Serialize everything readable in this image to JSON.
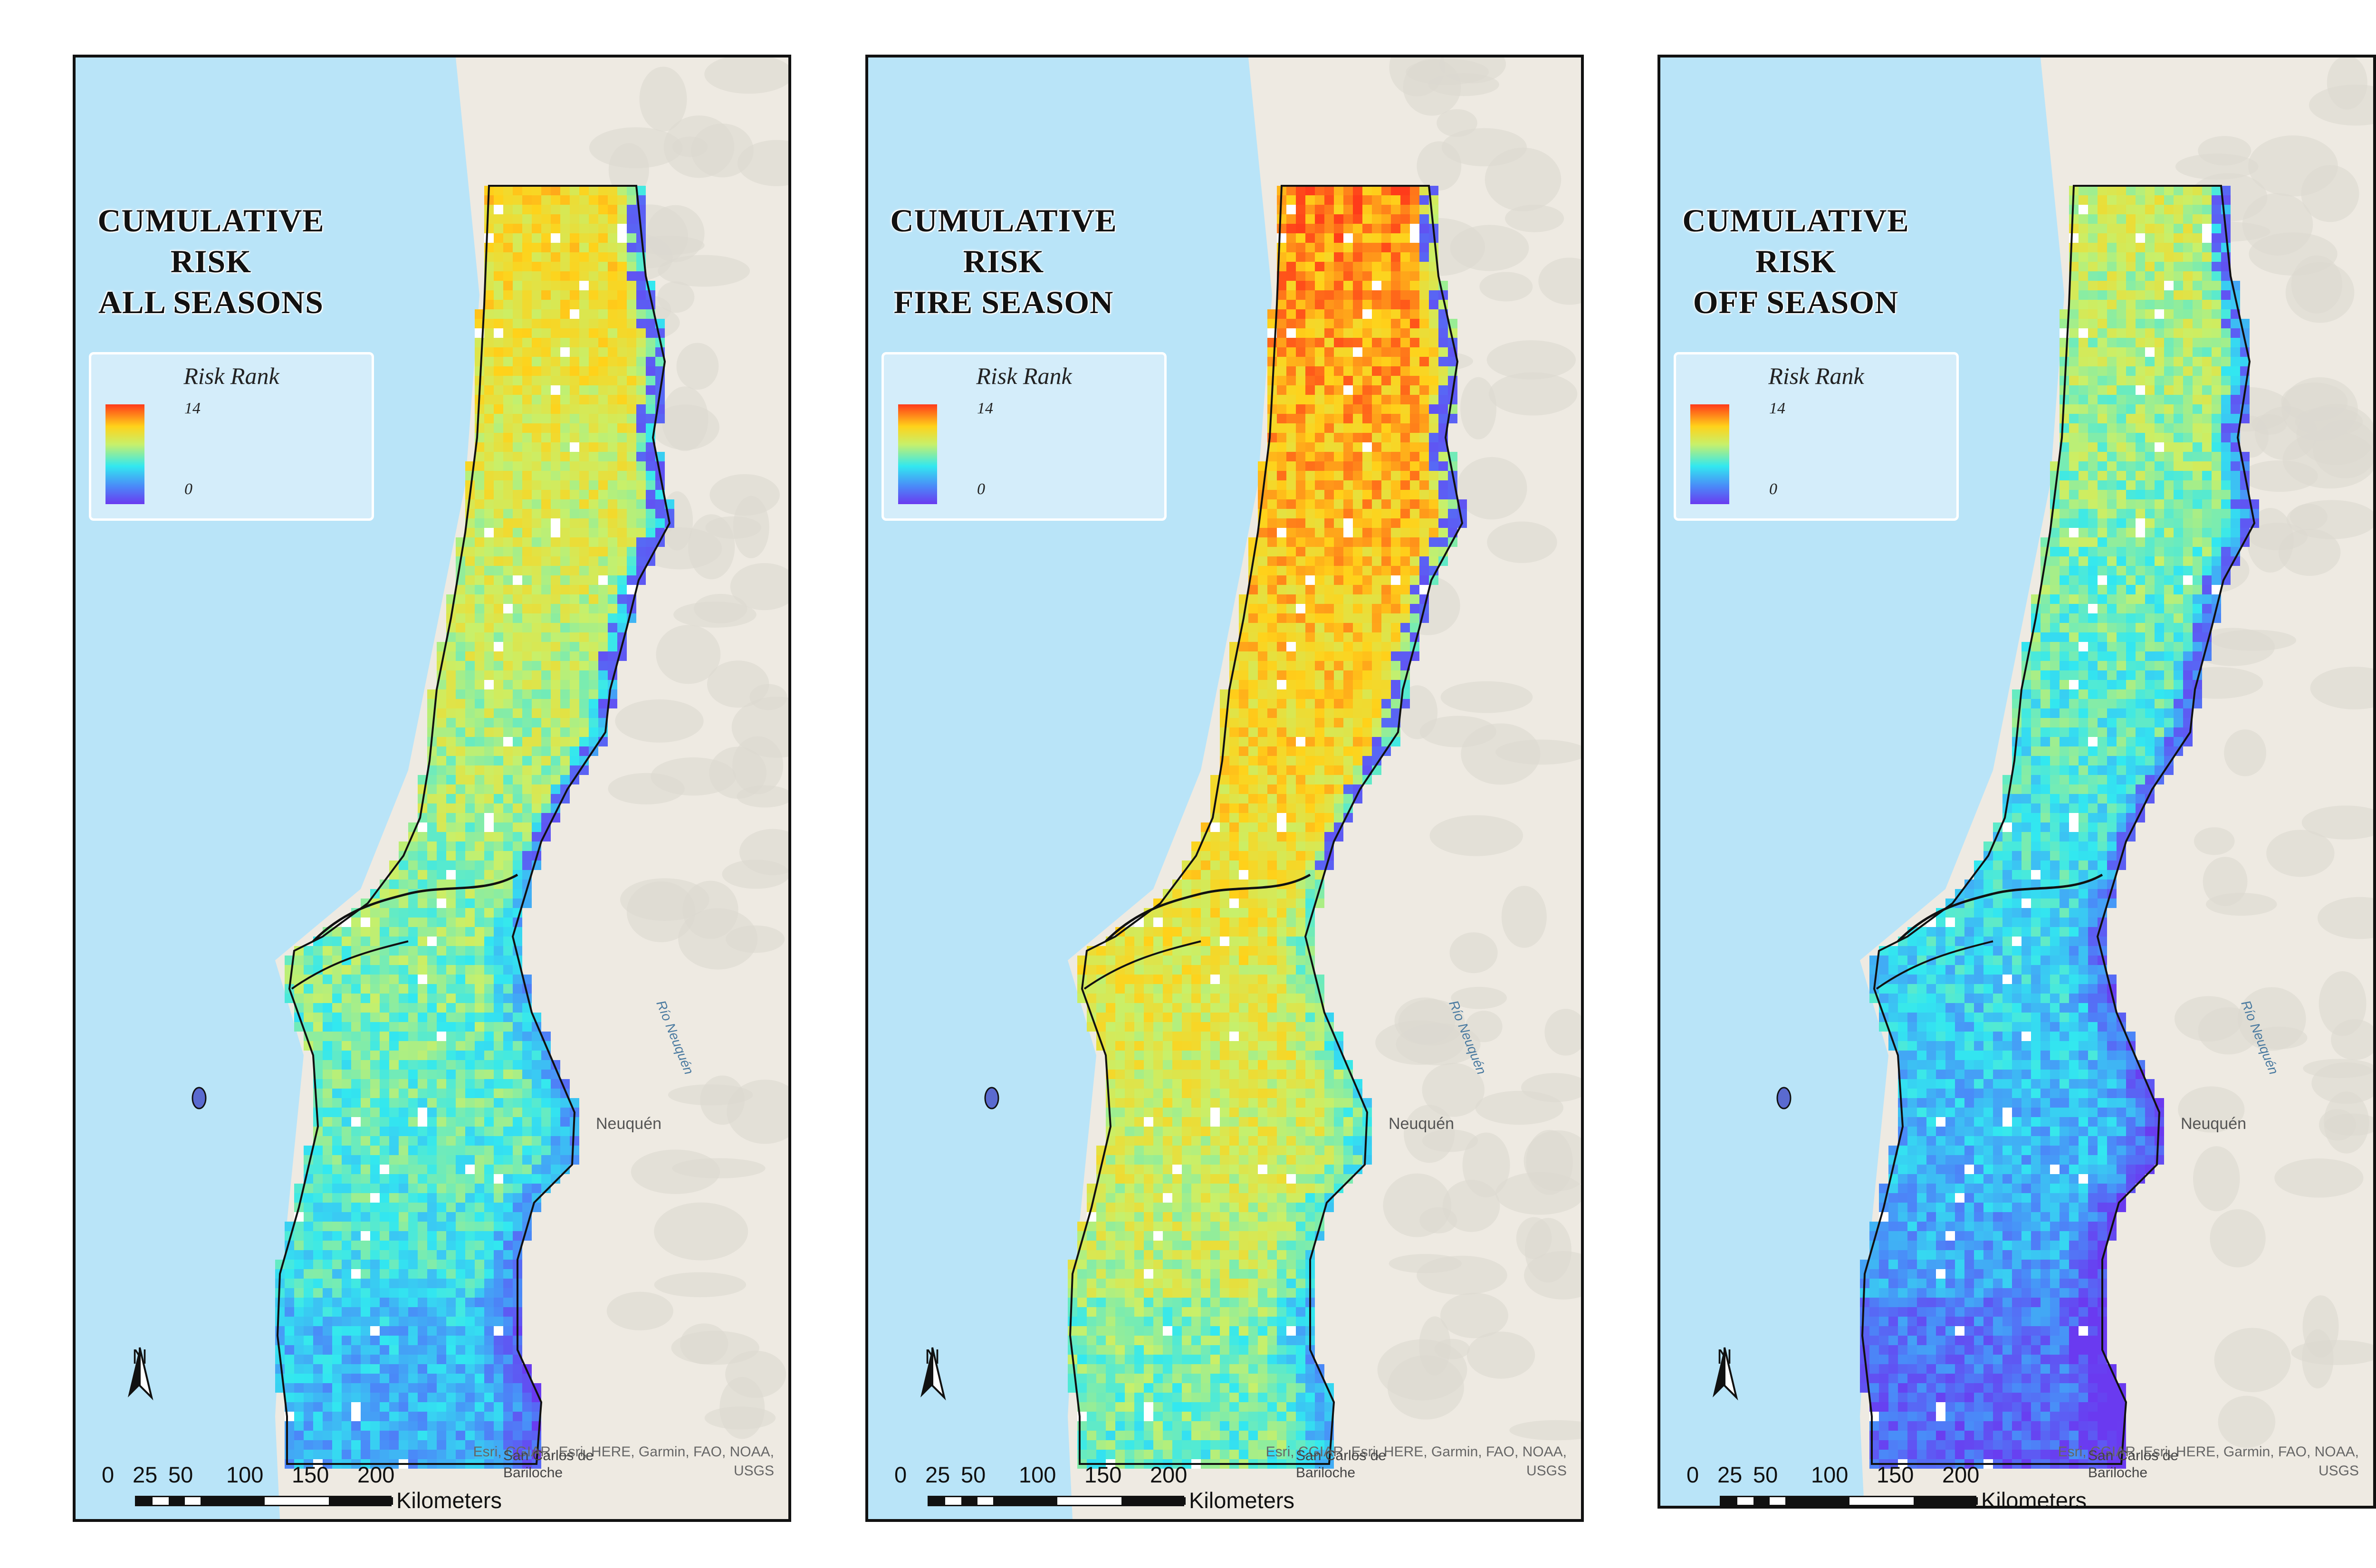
{
  "panels": [
    {
      "title": [
        "CUMULATIVE",
        "RISK",
        "ALL SEASONS"
      ],
      "variant": "all"
    },
    {
      "title": [
        "CUMULATIVE",
        "RISK",
        "FIRE SEASON"
      ],
      "variant": "fire"
    },
    {
      "title": [
        "CUMULATIVE",
        "RISK",
        "OFF SEASON"
      ],
      "variant": "off"
    }
  ],
  "legend": {
    "title": "Risk Rank",
    "max_label": "14",
    "min_label": "0",
    "colors": [
      "#ff3a1a",
      "#ffd21a",
      "#c8f06a",
      "#32e8f0",
      "#4a8af8",
      "#6a3af0"
    ]
  },
  "scale_bar": {
    "ticks": [
      "0",
      "25",
      "50",
      "100",
      "150",
      "200"
    ],
    "unit": "Kilometers"
  },
  "north_arrow": {
    "label": "N"
  },
  "attribution": [
    "Esri, CGIAR, Esri, HERE, Garmin, FAO, NOAA,",
    "USGS"
  ],
  "places": {
    "neuquen": "Neuquén",
    "bariloche": [
      "San Carlos de",
      "Bariloche"
    ],
    "river": "Río Neuquén"
  },
  "map_colors": {
    "ocean": "#b9e4f8",
    "land": "#eeeae2",
    "relief": "#dcd8d0",
    "boundary": "#111111"
  }
}
